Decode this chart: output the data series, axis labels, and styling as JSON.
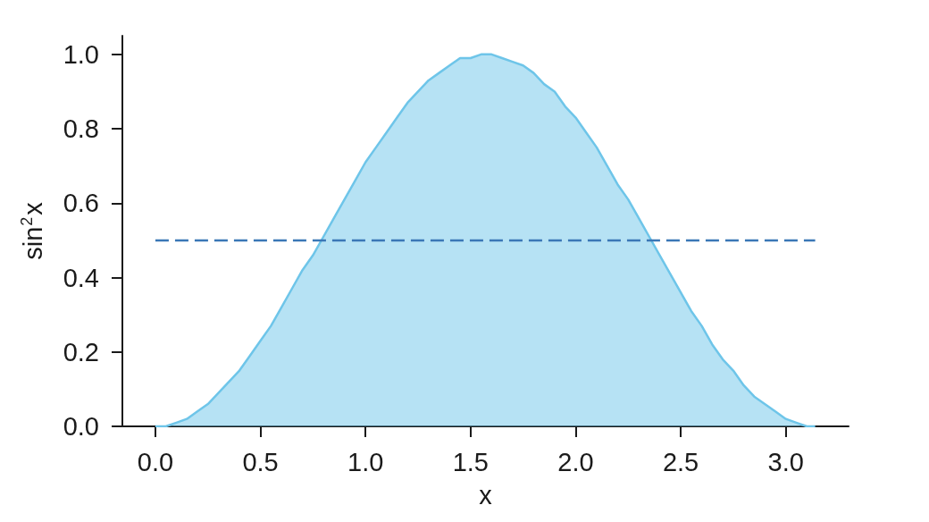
{
  "chart_data": {
    "type": "area",
    "xlabel": "x",
    "ylabel": "sin$^{2}$x",
    "xlim": [
      -0.157,
      3.299
    ],
    "ylim": [
      0,
      1.05
    ],
    "xticks": [
      {
        "value": 0,
        "label": "0.0"
      },
      {
        "value": 0.5,
        "label": "0.5"
      },
      {
        "value": 1,
        "label": "1.0"
      },
      {
        "value": 1.5,
        "label": "1.5"
      },
      {
        "value": 2,
        "label": "2.0"
      },
      {
        "value": 2.5,
        "label": "2.5"
      },
      {
        "value": 3,
        "label": "3.0"
      }
    ],
    "yticks": [
      {
        "value": 0,
        "label": "0.0"
      },
      {
        "value": 0.2,
        "label": "0.2"
      },
      {
        "value": 0.4,
        "label": "0.4"
      },
      {
        "value": 0.6,
        "label": "0.6"
      },
      {
        "value": 0.8,
        "label": "0.8"
      },
      {
        "value": 1,
        "label": "1.0"
      }
    ],
    "marker": "none",
    "series": [
      {
        "color": "#6ec5e9",
        "x": [
          0,
          0.05,
          0.1,
          0.15,
          0.2,
          0.25,
          0.3,
          0.35,
          0.4,
          0.45,
          0.5,
          0.55,
          0.6,
          0.65,
          0.7,
          0.75,
          0.8,
          0.85,
          0.9,
          0.95,
          1.0,
          1.05,
          1.1,
          1.15,
          1.2,
          1.25,
          1.3,
          1.35,
          1.4,
          1.45,
          1.5,
          1.55,
          1.6,
          1.65,
          1.7,
          1.75,
          1.8,
          1.85,
          1.9,
          1.95,
          2.0,
          2.05,
          2.1,
          2.15,
          2.2,
          2.25,
          2.3,
          2.35,
          2.4,
          2.45,
          2.5,
          2.55,
          2.6,
          2.65,
          2.7,
          2.75,
          2.8,
          2.85,
          2.9,
          2.95,
          3.0,
          3.05,
          3.1,
          3.14
        ],
        "values": [
          0,
          0.0,
          0.01,
          0.02,
          0.04,
          0.06,
          0.09,
          0.12,
          0.15,
          0.19,
          0.23,
          0.27,
          0.32,
          0.37,
          0.42,
          0.46,
          0.51,
          0.56,
          0.61,
          0.66,
          0.71,
          0.75,
          0.79,
          0.83,
          0.87,
          0.9,
          0.93,
          0.95,
          0.97,
          0.99,
          0.99,
          1.0,
          1.0,
          0.99,
          0.98,
          0.97,
          0.95,
          0.92,
          0.9,
          0.86,
          0.83,
          0.79,
          0.75,
          0.7,
          0.65,
          0.61,
          0.56,
          0.51,
          0.46,
          0.41,
          0.36,
          0.31,
          0.27,
          0.22,
          0.18,
          0.15,
          0.11,
          0.08,
          0.06,
          0.04,
          0.02,
          0.01,
          0.0,
          0.0
        ]
      },
      {
        "type": "line",
        "color": "#3b77b6",
        "line_style": "dashed",
        "x": [
          0,
          3.14
        ],
        "values": [
          0.5,
          0.5
        ]
      }
    ]
  }
}
